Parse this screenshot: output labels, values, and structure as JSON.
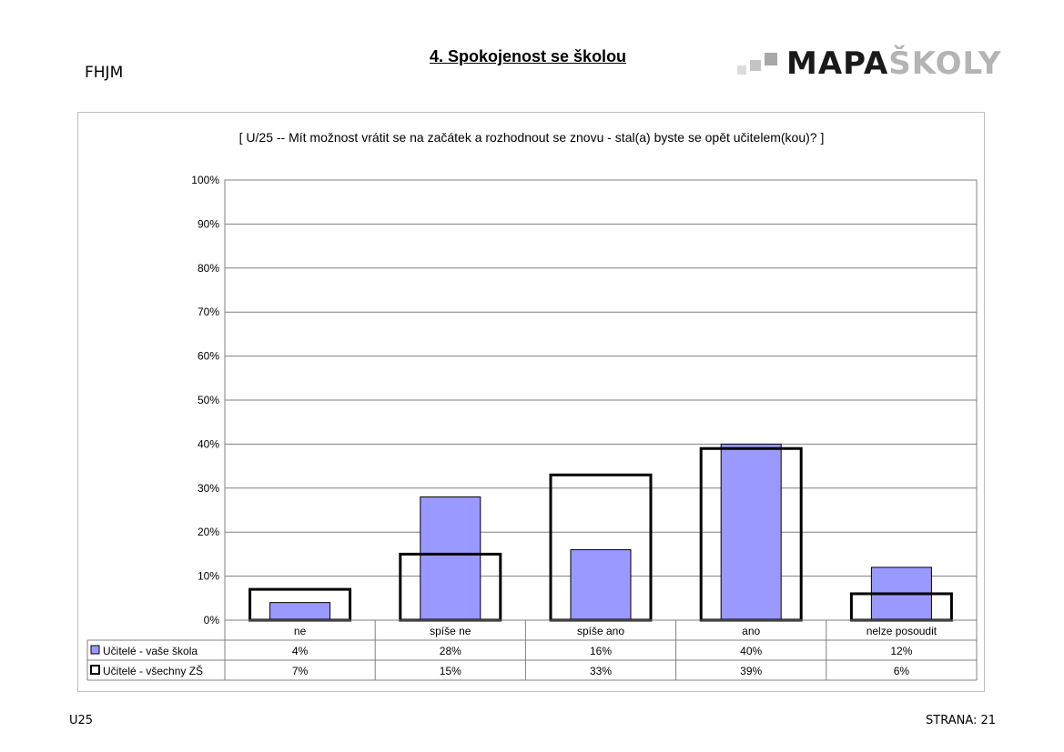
{
  "header": {
    "school_code": "FHJM",
    "page_title": "4. Spokojenost se školou",
    "logo_dark": "MAPA",
    "logo_light": "ŠKOLY"
  },
  "footer": {
    "code": "U25",
    "page": "STRANA: 21"
  },
  "colors": {
    "series1_fill": "#9999ff",
    "series2_fill": "#ffffff",
    "grid": "#808080",
    "text": "#000000"
  },
  "chart_data": {
    "type": "bar",
    "title": "[ U/25 -- Mít možnost vrátit se na začátek a rozhodnout se znovu - stal(a) byste se opět učitelem(kou)? ]",
    "categories": [
      "ne",
      "spíše ne",
      "spíše ano",
      "ano",
      "nelze posoudit"
    ],
    "series": [
      {
        "name": "Učitelé - vaše škola",
        "values": [
          4,
          28,
          16,
          40,
          12
        ],
        "labels": [
          "4%",
          "28%",
          "16%",
          "40%",
          "12%"
        ]
      },
      {
        "name": "Učitelé - všechny ZŠ",
        "values": [
          7,
          15,
          33,
          39,
          6
        ],
        "labels": [
          "7%",
          "15%",
          "33%",
          "39%",
          "6%"
        ]
      }
    ],
    "ylim": [
      0,
      100
    ],
    "yticks": [
      "0%",
      "10%",
      "20%",
      "30%",
      "40%",
      "50%",
      "60%",
      "70%",
      "80%",
      "90%",
      "100%"
    ],
    "grid": true,
    "legend": "data-table"
  }
}
